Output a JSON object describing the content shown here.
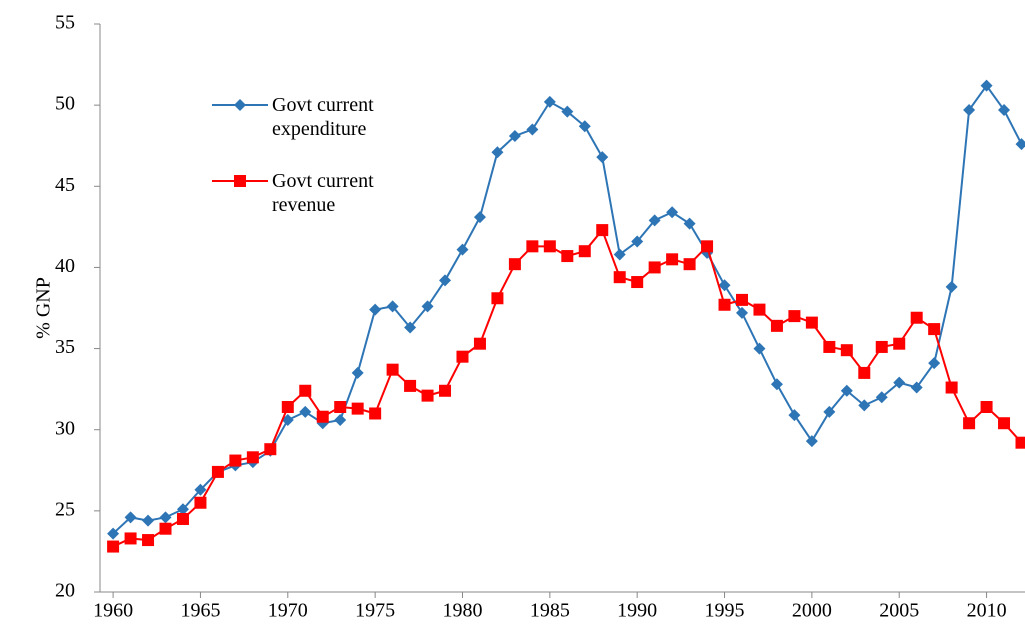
{
  "chart_data": {
    "type": "line",
    "ylabel": "% GNP",
    "x": [
      1960,
      1961,
      1962,
      1963,
      1964,
      1965,
      1966,
      1967,
      1968,
      1969,
      1970,
      1971,
      1972,
      1973,
      1974,
      1975,
      1976,
      1977,
      1978,
      1979,
      1980,
      1981,
      1982,
      1983,
      1984,
      1985,
      1986,
      1987,
      1988,
      1989,
      1990,
      1991,
      1992,
      1993,
      1994,
      1995,
      1996,
      1997,
      1998,
      1999,
      2000,
      2001,
      2002,
      2003,
      2004,
      2005,
      2006,
      2007,
      2008,
      2009,
      2010,
      2011,
      2012
    ],
    "series": [
      {
        "name": "Govt current expenditure",
        "color": "#2e75b6",
        "marker": "diamond",
        "values": [
          23.6,
          24.6,
          24.4,
          24.6,
          25.1,
          26.3,
          27.4,
          27.8,
          28.0,
          28.7,
          30.6,
          31.1,
          30.4,
          30.6,
          33.5,
          37.4,
          37.6,
          36.3,
          37.6,
          39.2,
          41.1,
          43.1,
          47.1,
          48.1,
          48.5,
          50.2,
          49.6,
          48.7,
          46.8,
          40.8,
          41.6,
          42.9,
          43.4,
          42.7,
          40.9,
          38.9,
          37.2,
          35.0,
          32.8,
          30.9,
          29.3,
          31.1,
          32.4,
          31.5,
          32.0,
          32.9,
          32.6,
          34.1,
          38.8,
          49.7,
          51.2,
          49.7,
          47.6
        ]
      },
      {
        "name": "Govt current revenue",
        "color": "#ff0000",
        "marker": "square",
        "values": [
          22.8,
          23.3,
          23.2,
          23.9,
          24.5,
          25.5,
          27.4,
          28.1,
          28.3,
          28.8,
          31.4,
          32.4,
          30.8,
          31.4,
          31.3,
          31.0,
          33.7,
          32.7,
          32.1,
          32.4,
          34.5,
          35.3,
          38.1,
          40.2,
          41.3,
          41.3,
          40.7,
          41.0,
          42.3,
          39.4,
          39.1,
          40.0,
          40.5,
          40.2,
          41.3,
          37.7,
          38.0,
          37.4,
          36.4,
          37.0,
          36.6,
          35.1,
          34.9,
          33.5,
          35.1,
          35.3,
          36.9,
          36.2,
          32.6,
          30.4,
          31.4,
          30.4,
          29.2
        ]
      }
    ],
    "xlim": [
      1959.25,
      2012.2
    ],
    "xticks": [
      1960,
      1965,
      1970,
      1975,
      1980,
      1985,
      1990,
      1995,
      2000,
      2005,
      2010
    ],
    "ylim": [
      20,
      55
    ],
    "yticks": [
      20,
      25,
      30,
      35,
      40,
      45,
      50,
      55
    ],
    "grid": false
  }
}
